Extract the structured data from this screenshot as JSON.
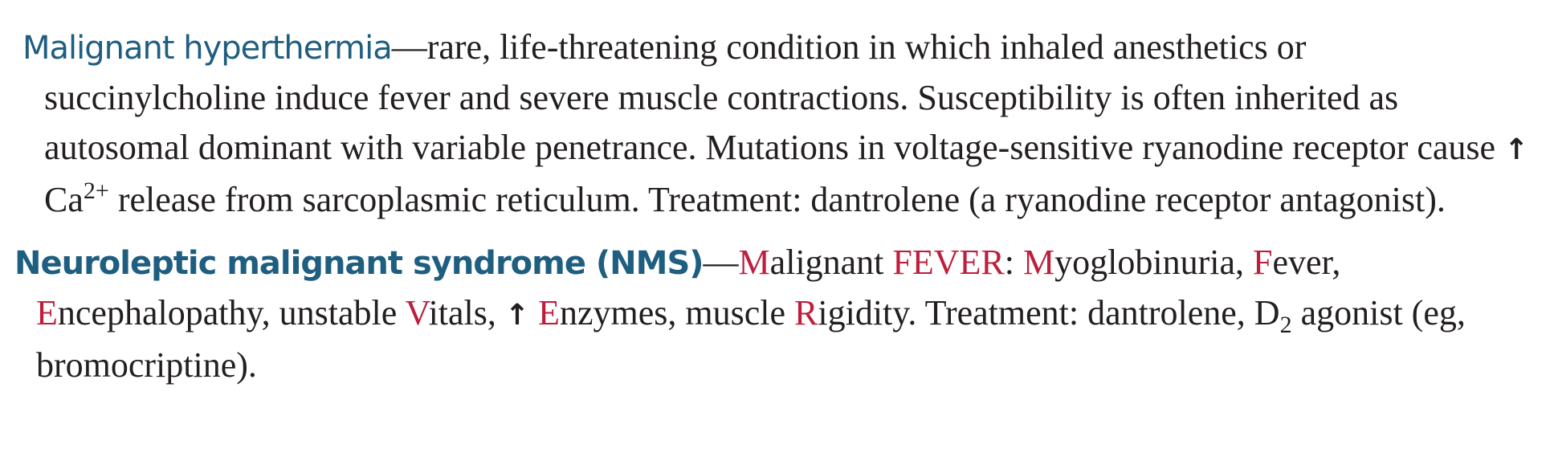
{
  "malignant_hyperthermia": {
    "term": "Malignant hyperthermia",
    "text_1": "—rare, life-threatening condition in which inhaled anesthetics or succinylcholine induce fever and severe muscle contractions. Susceptibility is often inherited as autosomal dominant with variable penetrance. Mutations in voltage-sensitive ryanodine receptor cause ",
    "arrow": "↑",
    "text_2": " Ca",
    "superscript": "2+",
    "text_3": " release from sarcoplasmic reticulum. Treatment: dantrolene (a ryanodine receptor antagonist)."
  },
  "nms": {
    "term": "Neuroleptic malignant syndrome (NMS)",
    "dash": "—",
    "m1": "M",
    "t1": "alignant ",
    "fever": "FEVER",
    "t2": ": ",
    "m2": "M",
    "t3": "yoglobinuria, ",
    "f": "F",
    "t4": "ever, ",
    "e1": "E",
    "t5": "ncephalopathy, unstable ",
    "v": "V",
    "t6": "itals, ",
    "arrow": "↑",
    "t7": " ",
    "e2": "E",
    "t8": "nzymes, muscle ",
    "r": "R",
    "t9": "igidity. Treatment: dantrolene, D",
    "subscript": "2",
    "t10": " agonist (eg, bromocriptine)."
  }
}
